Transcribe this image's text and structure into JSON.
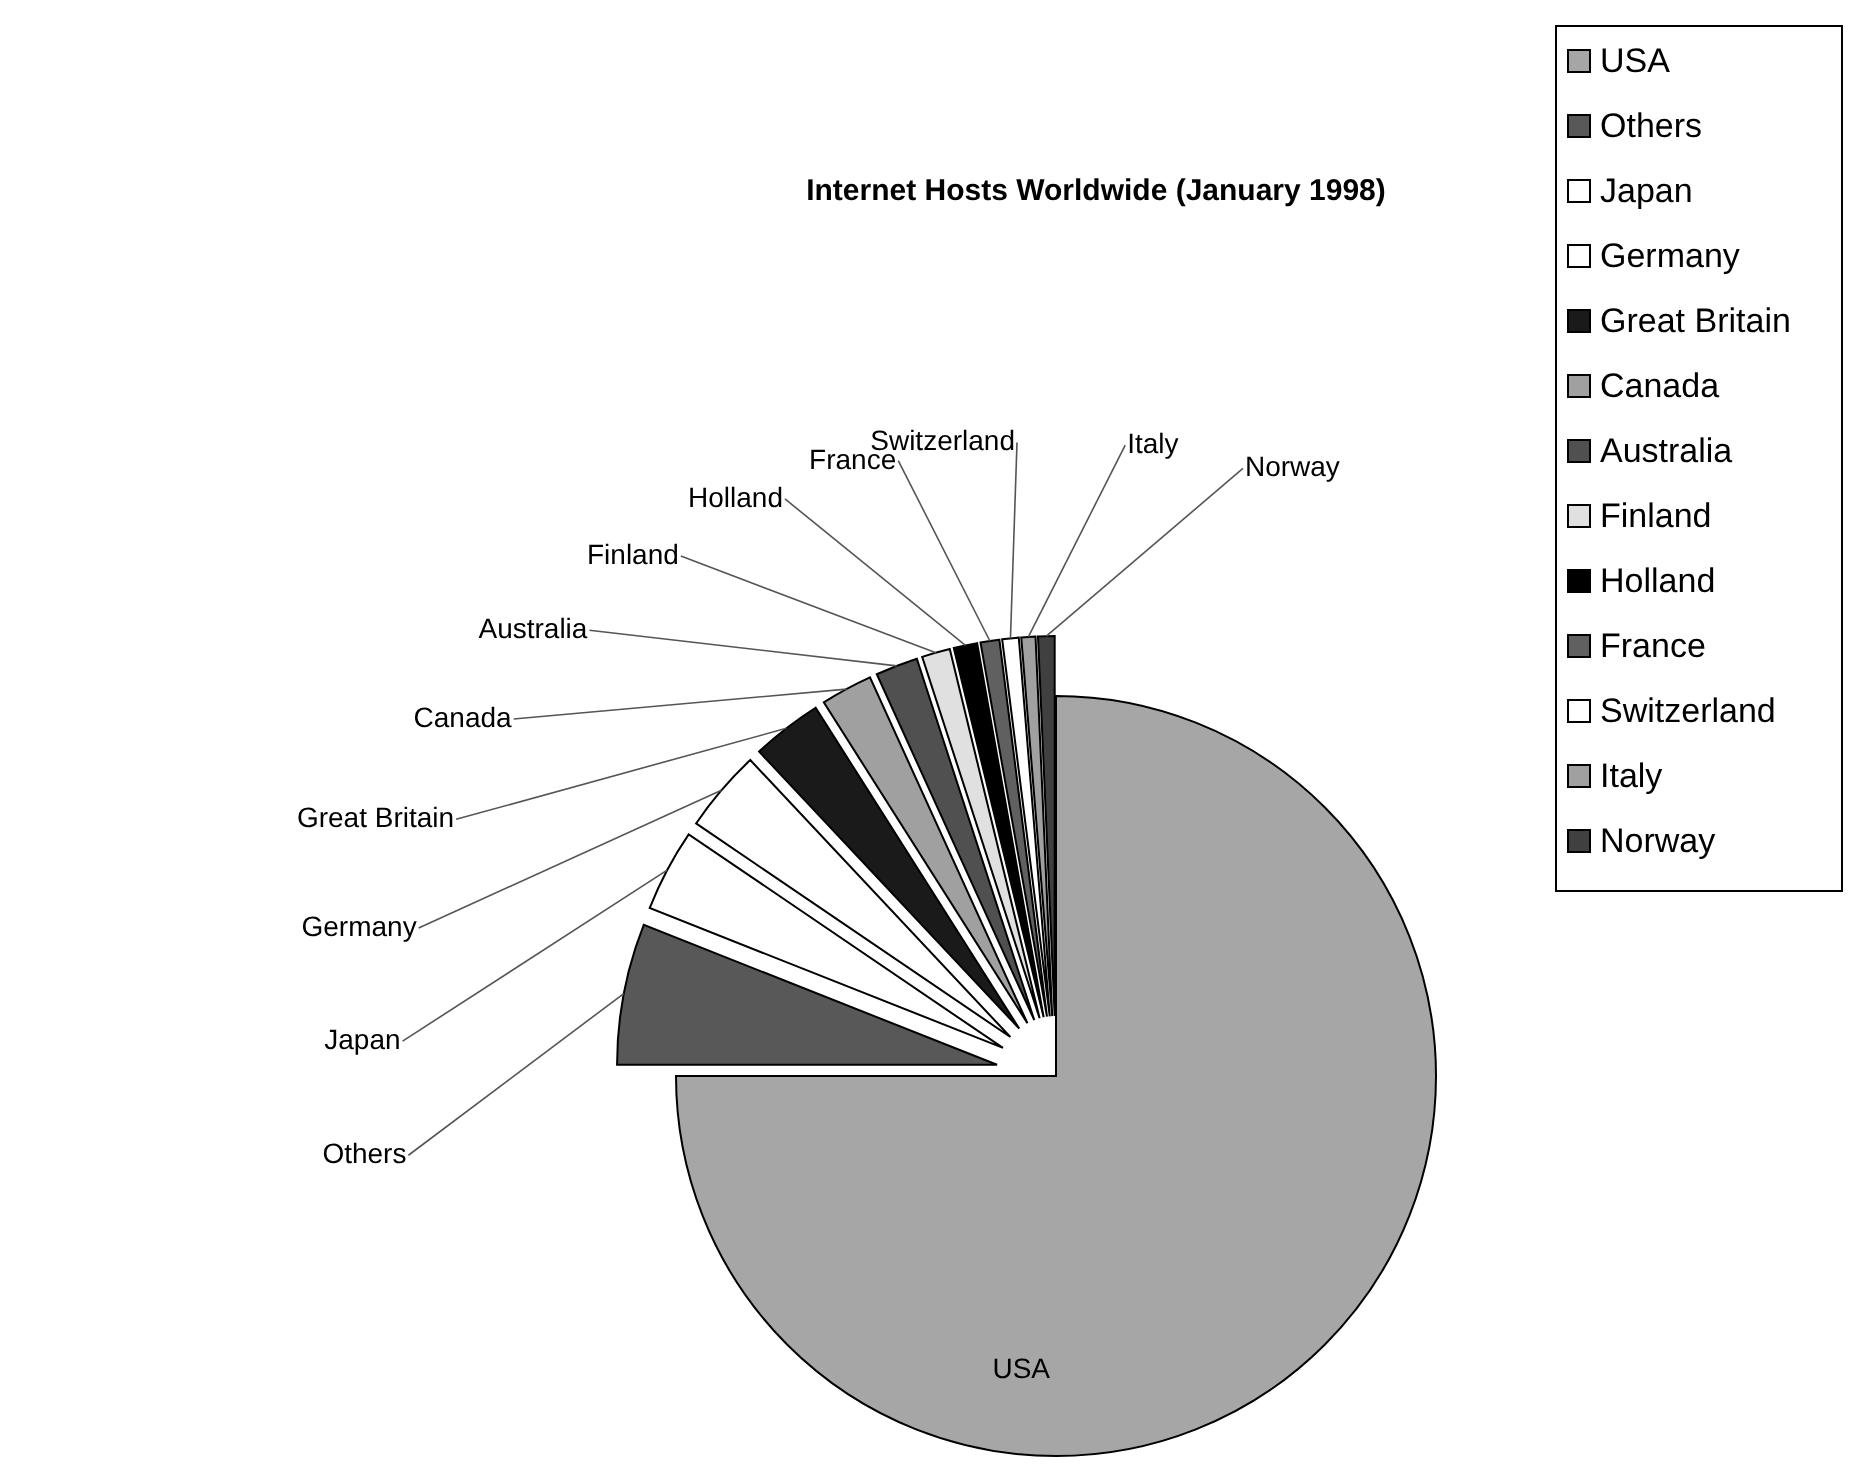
{
  "chart_data": {
    "type": "pie",
    "title": "Internet Hosts Worldwide (January 1998)",
    "categories": [
      "USA",
      "Others",
      "Japan",
      "Germany",
      "Great Britain",
      "Canada",
      "Australia",
      "Finland",
      "Holland",
      "France",
      "Switzerland",
      "Italy",
      "Norway"
    ],
    "values": [
      75,
      6,
      3.5,
      3.5,
      3,
      2.2,
      1.8,
      1.2,
      1,
      0.8,
      0.7,
      0.6,
      0.7
    ],
    "colors": [
      "#a6a6a6",
      "#585858",
      "#ffffff",
      "#ffffff",
      "#1a1a1a",
      "#a0a0a0",
      "#505050",
      "#e0e0e0",
      "#000000",
      "#606060",
      "#ffffff",
      "#a0a0a0",
      "#404040"
    ],
    "legend": "right"
  }
}
